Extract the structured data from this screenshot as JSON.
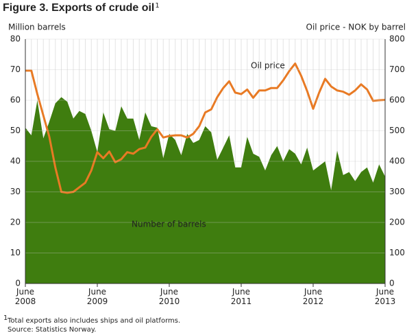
{
  "chart_data": {
    "type": "area-line",
    "title": "Figure 3. Exports of crude oil",
    "title_note": "1",
    "y_label": "Million barrels",
    "y2_label": "Oil price - NOK by barrel",
    "footnote_mark": "1",
    "footnote": "Total exports also includes ships and oil platforms.",
    "source": "Source: Statistics Norway.",
    "categories": [
      "June 2008",
      null,
      null,
      null,
      null,
      null,
      null,
      null,
      null,
      null,
      null,
      null,
      "June 2009",
      null,
      null,
      null,
      null,
      null,
      null,
      null,
      null,
      null,
      null,
      null,
      "June 2010",
      null,
      null,
      null,
      null,
      null,
      null,
      null,
      null,
      null,
      null,
      null,
      "June 2011",
      null,
      null,
      null,
      null,
      null,
      null,
      null,
      null,
      null,
      null,
      null,
      "June 2012",
      null,
      null,
      null,
      null,
      null,
      null,
      null,
      null,
      null,
      null,
      null,
      "June 2013"
    ],
    "series": [
      {
        "name": "Number of barrels",
        "type": "area",
        "color": "#3f7d0f",
        "values": [
          51,
          48.5,
          60,
          47.5,
          53,
          59,
          61,
          59.5,
          54,
          56.5,
          55.5,
          50,
          43,
          56,
          50.5,
          50,
          58,
          54,
          54,
          47,
          56,
          51.5,
          51,
          41,
          49,
          47,
          42,
          49,
          46,
          47,
          51.5,
          49.5,
          40.5,
          44.5,
          48.5,
          38,
          38,
          48,
          42.5,
          41.5,
          37,
          42,
          45,
          40,
          44,
          42.5,
          39,
          44.5,
          37,
          38.5,
          40,
          30.5,
          43.5,
          35.5,
          36.5,
          33.5,
          36.5,
          38,
          33,
          39,
          35
        ]
      },
      {
        "name": "Oil price",
        "type": "line",
        "axis": "y2",
        "color": "#e87a24",
        "values": [
          697,
          697,
          620,
          550,
          480,
          380,
          300,
          297,
          300,
          315,
          330,
          370,
          430,
          410,
          432,
          397,
          407,
          430,
          425,
          440,
          445,
          480,
          505,
          478,
          483,
          485,
          485,
          478,
          490,
          515,
          560,
          570,
          610,
          640,
          662,
          625,
          620,
          635,
          608,
          632,
          632,
          640,
          640,
          665,
          695,
          720,
          680,
          630,
          572,
          625,
          670,
          645,
          632,
          628,
          618,
          632,
          652,
          635,
          598,
          600,
          601
        ]
      }
    ],
    "ylim": [
      0,
      80
    ],
    "yticks": [
      0,
      10,
      20,
      30,
      40,
      50,
      60,
      70,
      80
    ],
    "y2lim": [
      0,
      800
    ],
    "y2ticks": [
      0,
      100,
      200,
      300,
      400,
      500,
      600,
      700,
      800
    ],
    "grid": true
  }
}
